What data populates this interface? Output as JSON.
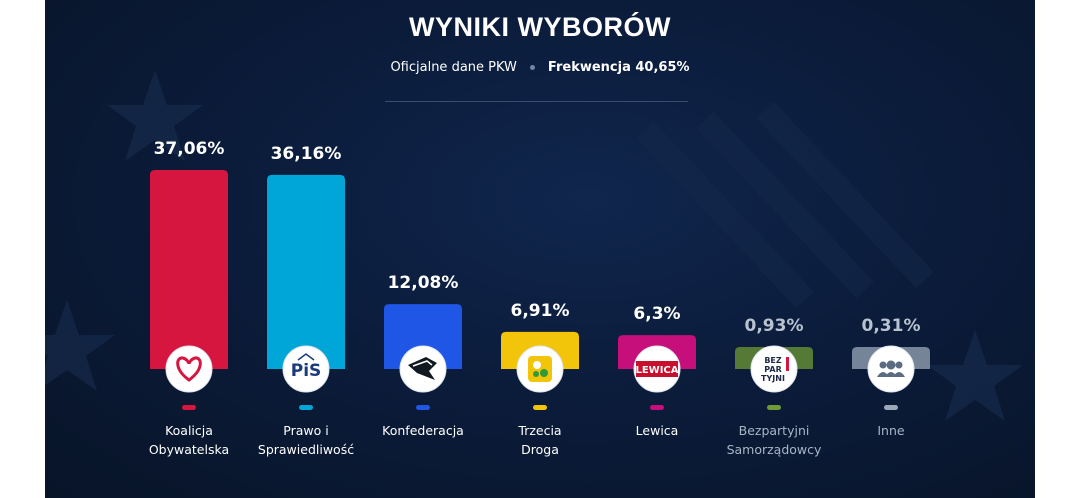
{
  "header": {
    "title": "WYNIKI WYBORÓW",
    "source": "Oficjalne dane PKW",
    "turnout": "Frekwencja 40,65%"
  },
  "chart_data": {
    "type": "bar",
    "title": "WYNIKI WYBORÓW",
    "categories": [
      [
        "Koalicja",
        "Obywatelska"
      ],
      [
        "Prawo i",
        "Sprawiedliwość"
      ],
      [
        "Konfederacja"
      ],
      [
        "Trzecia",
        "Droga"
      ],
      [
        "Lewica"
      ],
      [
        "Bezpartyjni",
        "Samorządowcy"
      ],
      [
        "Inne"
      ]
    ],
    "values": [
      37.06,
      36.16,
      12.08,
      6.91,
      6.3,
      0.93,
      0.31
    ],
    "value_labels": [
      "37,06%",
      "36,16%",
      "12,08%",
      "6,91%",
      "6,3%",
      "0,93%",
      "0,31%"
    ],
    "colors": [
      "#d7163f",
      "#00a6d8",
      "#1f56e6",
      "#f2c40a",
      "#c70f7c",
      "#6f9a34",
      "#9aa8b8"
    ],
    "logos": [
      "heart-icon",
      "pis-logo",
      "konfederacja-logo",
      "trzecia-droga-logo",
      "lewica-logo",
      "bezpartyjni-logo",
      "people-icon"
    ],
    "logo_texts": [
      "",
      "PiS",
      "",
      "",
      "LEWICA",
      "BEZPARTYJNI",
      ""
    ],
    "muted": [
      false,
      false,
      false,
      false,
      false,
      true,
      true
    ],
    "ylim": [
      0,
      40
    ],
    "grid": false,
    "legend": "none"
  }
}
